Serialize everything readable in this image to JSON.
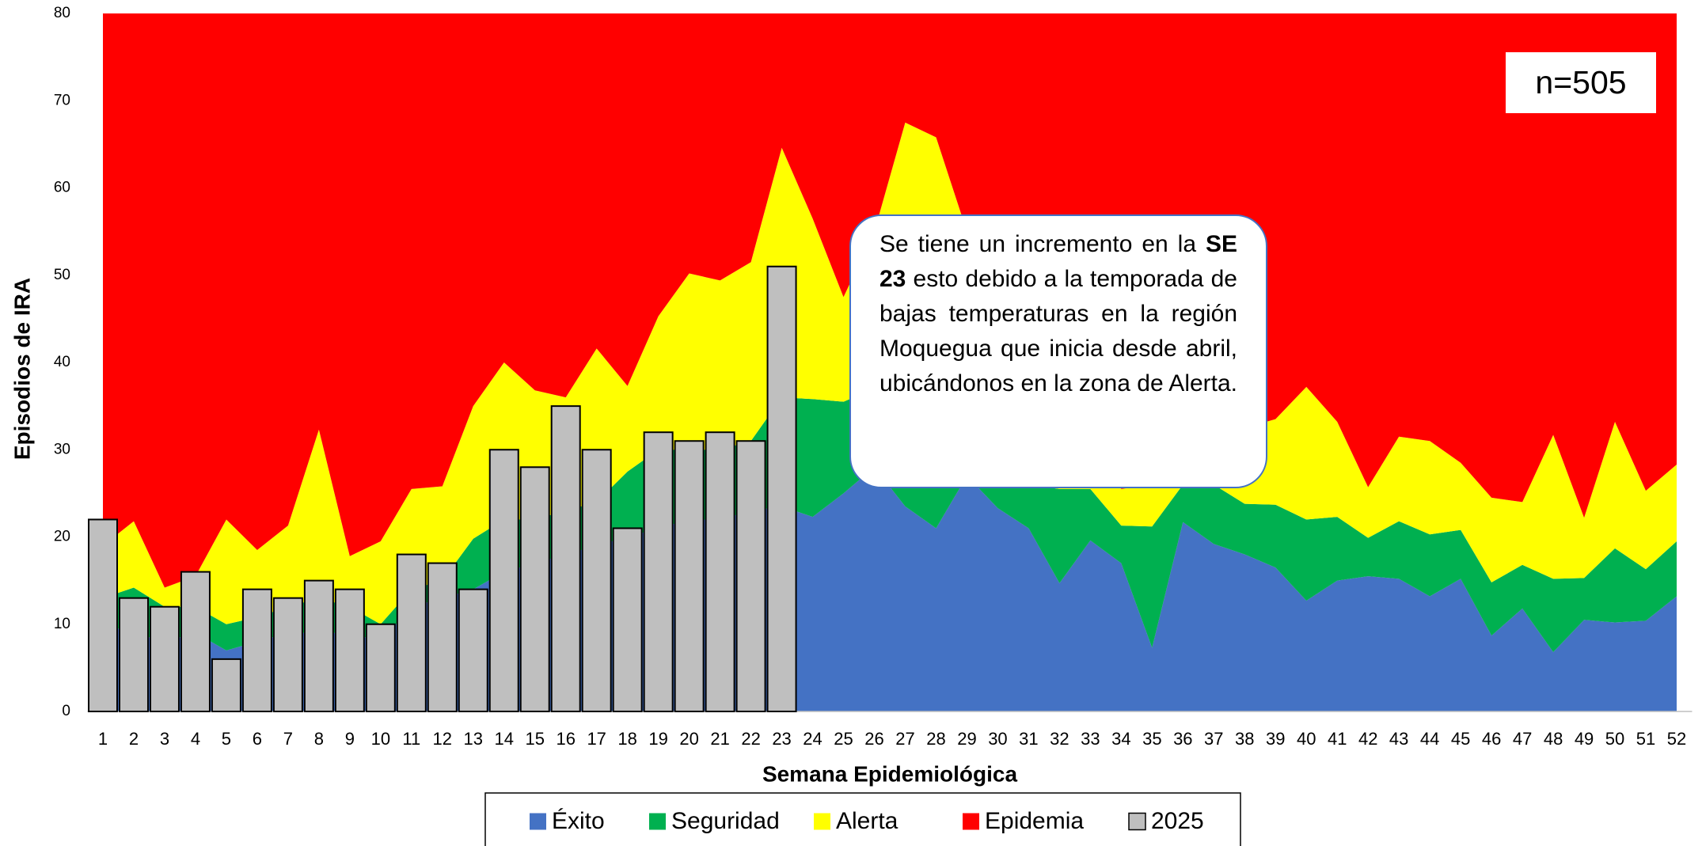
{
  "chart_data": {
    "type": "area",
    "x_label": "Semana Epidemiológica",
    "y_label": "Episodios de IRA",
    "categories": [
      1,
      2,
      3,
      4,
      5,
      6,
      7,
      8,
      9,
      10,
      11,
      12,
      13,
      14,
      15,
      16,
      17,
      18,
      19,
      20,
      21,
      22,
      23,
      24,
      25,
      26,
      27,
      28,
      29,
      30,
      31,
      32,
      33,
      34,
      35,
      36,
      37,
      38,
      39,
      40,
      41,
      42,
      43,
      44,
      45,
      46,
      47,
      48,
      49,
      50,
      51,
      52
    ],
    "ylim": [
      0,
      80
    ],
    "yticks": [
      0,
      10,
      20,
      30,
      40,
      50,
      60,
      70,
      80
    ],
    "grid": false,
    "series": [
      {
        "name": "Éxito",
        "color": "#4472c4",
        "values": [
          10,
          9,
          8,
          9,
          7,
          8,
          9,
          9,
          9,
          8,
          12,
          13,
          14,
          16,
          17,
          18,
          19,
          20,
          21,
          22,
          22,
          23,
          23.5,
          22.3,
          25,
          28,
          23.5,
          21,
          27,
          23.3,
          21,
          14.7,
          19.6,
          17,
          7.3,
          21.7,
          19.2,
          18,
          16.5,
          12.7,
          15,
          15.5,
          15.2,
          13.2,
          15.2,
          8.7,
          11.8,
          6.8,
          10.5,
          10.2,
          10.4,
          13.2
        ]
      },
      {
        "name": "Seguridad",
        "color": "#00b050",
        "values": [
          3,
          5.2,
          4,
          3,
          3,
          2.8,
          3,
          4,
          3,
          2,
          2,
          2,
          5.8,
          6,
          5,
          5,
          5,
          7.5,
          9,
          8,
          8,
          8,
          12.5,
          13.5,
          10.5,
          9,
          11.5,
          12,
          5,
          5.7,
          5,
          10.8,
          5.9,
          4.3,
          13.9,
          4.3,
          6.8,
          5.8,
          7.2,
          9.3,
          7.3,
          4.4,
          6.6,
          7.1,
          5.6,
          6.1,
          5,
          8.4,
          4.8,
          8.5,
          5.9,
          6.3
        ]
      },
      {
        "name": "Alerta",
        "color": "#ffff00",
        "values": [
          6,
          7.6,
          2.2,
          3.5,
          12,
          7.7,
          9.3,
          19.3,
          5.8,
          9.5,
          11.5,
          10.8,
          15.2,
          18,
          14.8,
          13,
          17.6,
          9.8,
          15.3,
          20.2,
          19.4,
          20.5,
          28.6,
          20.7,
          12,
          18,
          32.5,
          32.8,
          23,
          16,
          16,
          14.5,
          10.5,
          4.2,
          4.8,
          7,
          9,
          8.7,
          9.8,
          15.2,
          10.9,
          5.8,
          9.7,
          10.7,
          7.7,
          9.7,
          7.2,
          16.5,
          6.9,
          14.5,
          9,
          8.8
        ]
      },
      {
        "name": "Epidemia",
        "color": "#ff0000"
      },
      {
        "name": "2025",
        "type": "bar",
        "color": "#bfbfbf",
        "values": [
          22,
          13,
          12,
          16,
          6,
          14,
          13,
          15,
          14,
          10,
          18,
          17,
          14,
          30,
          28,
          35,
          30,
          21,
          32,
          31,
          32,
          31,
          51,
          null,
          null,
          null,
          null,
          null,
          null,
          null,
          null,
          null,
          null,
          null,
          null,
          null,
          null,
          null,
          null,
          null,
          null,
          null,
          null,
          null,
          null,
          null,
          null,
          null,
          null,
          null,
          null,
          null
        ]
      }
    ],
    "annotations": {
      "n": "n=505",
      "callout": [
        "Se tiene un incremento  en la ",
        "SE 23",
        " esto debido a la temporada de bajas temperaturas en la región Moquegua que inicia desde abril, ubicándonos en la zona de Alerta."
      ]
    }
  }
}
